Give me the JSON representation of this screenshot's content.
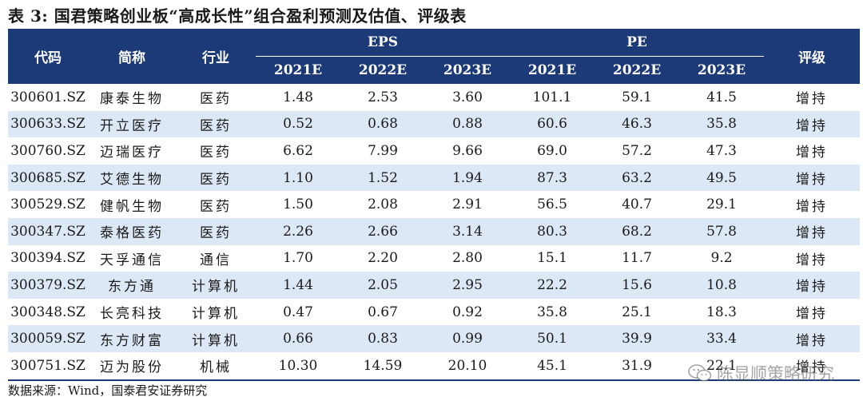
{
  "title": "表 3:  国君策略创业板“高成长性”组合盈利预测及估值、评级表",
  "header": {
    "code": "代码",
    "name": "简称",
    "industry": "行业",
    "eps": "EPS",
    "pe": "PE",
    "rating": "评级",
    "years": [
      "2021E",
      "2022E",
      "2023E"
    ]
  },
  "rows": [
    {
      "code": "300601.SZ",
      "name": "康泰生物",
      "industry": "医药",
      "eps": [
        "1.48",
        "2.53",
        "3.60"
      ],
      "pe": [
        "101.1",
        "59.1",
        "41.5"
      ],
      "rating": "增持"
    },
    {
      "code": "300633.SZ",
      "name": "开立医疗",
      "industry": "医药",
      "eps": [
        "0.52",
        "0.68",
        "0.88"
      ],
      "pe": [
        "60.6",
        "46.3",
        "35.8"
      ],
      "rating": "增持"
    },
    {
      "code": "300760.SZ",
      "name": "迈瑞医疗",
      "industry": "医药",
      "eps": [
        "6.62",
        "7.99",
        "9.66"
      ],
      "pe": [
        "69.0",
        "57.2",
        "47.3"
      ],
      "rating": "增持"
    },
    {
      "code": "300685.SZ",
      "name": "艾德生物",
      "industry": "医药",
      "eps": [
        "1.10",
        "1.52",
        "1.94"
      ],
      "pe": [
        "87.3",
        "63.2",
        "49.5"
      ],
      "rating": "增持"
    },
    {
      "code": "300529.SZ",
      "name": "健帆生物",
      "industry": "医药",
      "eps": [
        "1.50",
        "2.08",
        "2.91"
      ],
      "pe": [
        "56.5",
        "40.7",
        "29.1"
      ],
      "rating": "增持"
    },
    {
      "code": "300347.SZ",
      "name": "泰格医药",
      "industry": "医药",
      "eps": [
        "2.26",
        "2.66",
        "3.14"
      ],
      "pe": [
        "80.3",
        "68.2",
        "57.8"
      ],
      "rating": "增持"
    },
    {
      "code": "300394.SZ",
      "name": "天孚通信",
      "industry": "通信",
      "eps": [
        "1.70",
        "2.20",
        "2.80"
      ],
      "pe": [
        "15.1",
        "11.7",
        "9.2"
      ],
      "rating": "增持"
    },
    {
      "code": "300379.SZ",
      "name": "东方通",
      "industry": "计算机",
      "eps": [
        "1.44",
        "2.05",
        "2.95"
      ],
      "pe": [
        "22.2",
        "15.6",
        "10.8"
      ],
      "rating": "增持"
    },
    {
      "code": "300348.SZ",
      "name": "长亮科技",
      "industry": "计算机",
      "eps": [
        "0.47",
        "0.67",
        "0.92"
      ],
      "pe": [
        "35.8",
        "25.1",
        "18.3"
      ],
      "rating": "增持"
    },
    {
      "code": "300059.SZ",
      "name": "东方财富",
      "industry": "计算机",
      "eps": [
        "0.66",
        "0.83",
        "0.99"
      ],
      "pe": [
        "50.1",
        "39.9",
        "33.4"
      ],
      "rating": "增持"
    },
    {
      "code": "300751.SZ",
      "name": "迈为股份",
      "industry": "机械",
      "eps": [
        "10.30",
        "14.59",
        "20.10"
      ],
      "pe": [
        "45.1",
        "31.9",
        "22.1"
      ],
      "rating": "增持"
    }
  ],
  "source": "数据来源：Wind，国泰君安证券研究",
  "watermark": {
    "text": "陈显顺策略研究",
    "icon": "wechat-icon"
  },
  "colors": {
    "header_bg": "#1d3a78",
    "stripe_bg": "#dde8f6"
  }
}
